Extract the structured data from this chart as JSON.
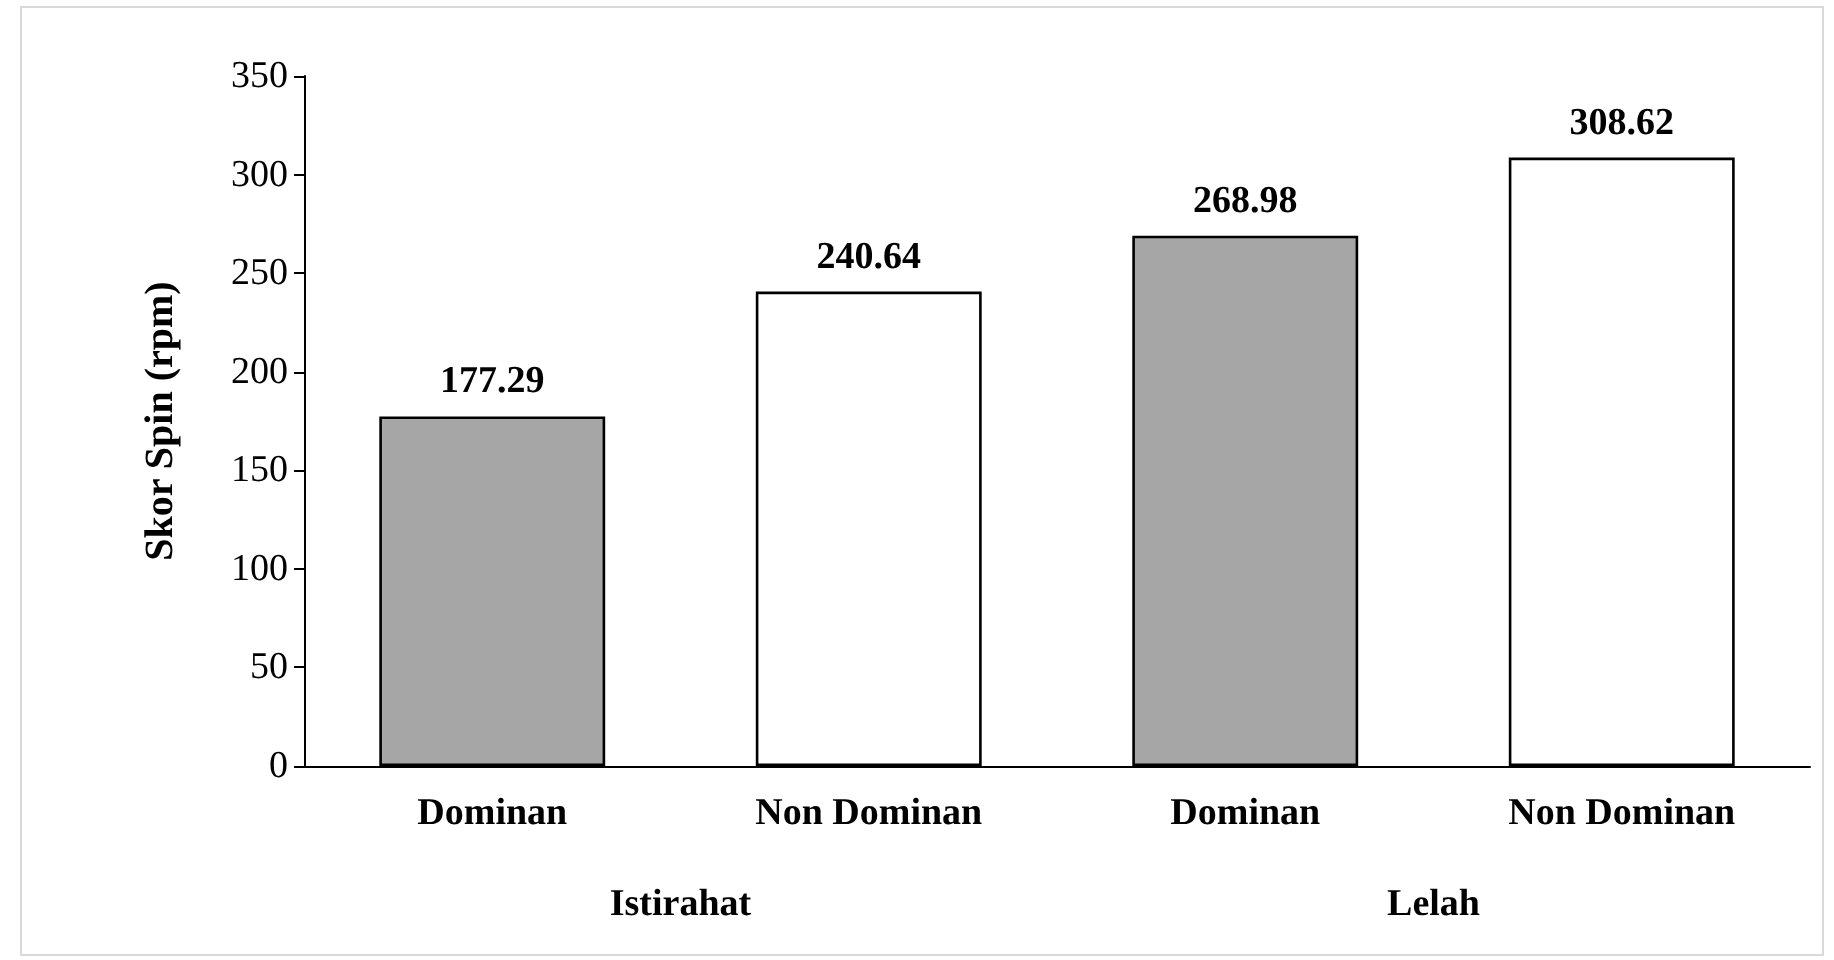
{
  "chart_data": {
    "type": "bar",
    "ylabel": "Skor Spin (rpm)",
    "categories": [
      "Dominan",
      "Non Dominan",
      "Dominan",
      "Non Dominan"
    ],
    "values": [
      177.29,
      240.64,
      268.98,
      308.62
    ],
    "colors": [
      "#a6a6a6",
      "#ffffff",
      "#a6a6a6",
      "#ffffff"
    ],
    "ylim": [
      0,
      350
    ],
    "yticks": [
      0,
      50,
      100,
      150,
      200,
      250,
      300,
      350
    ],
    "data_labels": true,
    "grid": false,
    "annotations": [
      "Istirahat",
      "Lelah"
    ]
  }
}
